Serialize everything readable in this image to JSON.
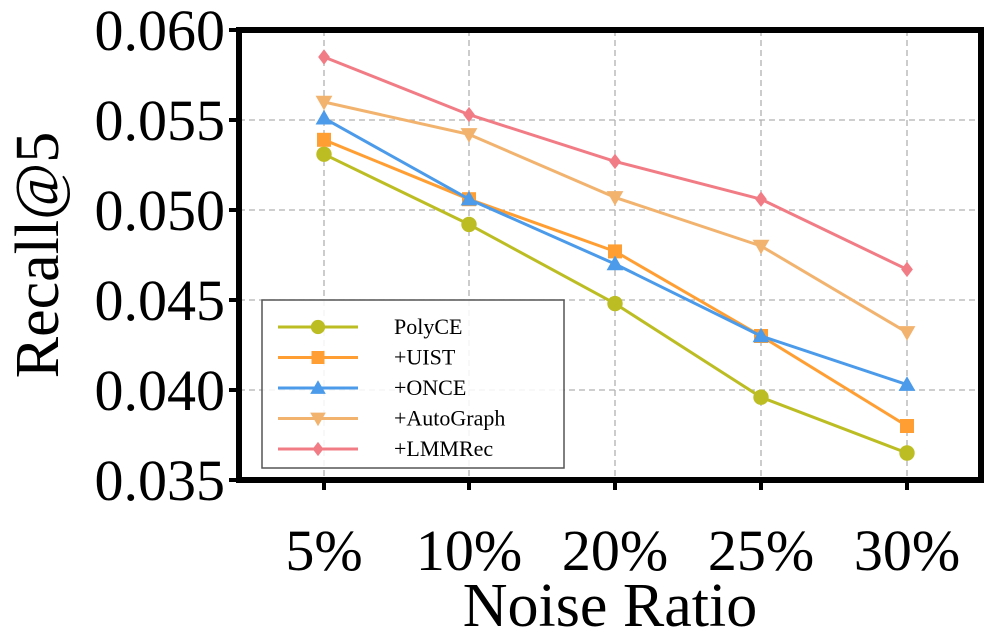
{
  "chart_data": {
    "type": "line",
    "title": "",
    "xlabel": "Noise Ratio",
    "ylabel": "Recall@5",
    "categories": [
      "5%",
      "10%",
      "20%",
      "25%",
      "30%"
    ],
    "ylim": [
      0.035,
      0.06
    ],
    "yticks": [
      "0.035",
      "0.040",
      "0.045",
      "0.050",
      "0.055",
      "0.060"
    ],
    "ytick_values": [
      0.035,
      0.04,
      0.045,
      0.05,
      0.055,
      0.06
    ],
    "grid": true,
    "legend_position": "lower-left",
    "series": [
      {
        "name": "PolyCE",
        "color": "#bcbd22",
        "marker": "circle",
        "values": [
          0.0531,
          0.0492,
          0.0448,
          0.0396,
          0.0365
        ]
      },
      {
        "name": "+UIST",
        "color": "#ff9f33",
        "marker": "square",
        "values": [
          0.0539,
          0.0506,
          0.0477,
          0.043,
          0.038
        ]
      },
      {
        "name": "+ONCE",
        "color": "#4c9bea",
        "marker": "triangle-up",
        "values": [
          0.0551,
          0.0506,
          0.047,
          0.043,
          0.0403
        ]
      },
      {
        "name": "+AutoGraph",
        "color": "#f2b36f",
        "marker": "triangle-down",
        "values": [
          0.056,
          0.0542,
          0.0507,
          0.048,
          0.0432
        ]
      },
      {
        "name": "+LMMRec",
        "color": "#f27c86",
        "marker": "diamond",
        "values": [
          0.0585,
          0.0553,
          0.0527,
          0.0506,
          0.0467
        ]
      }
    ]
  }
}
